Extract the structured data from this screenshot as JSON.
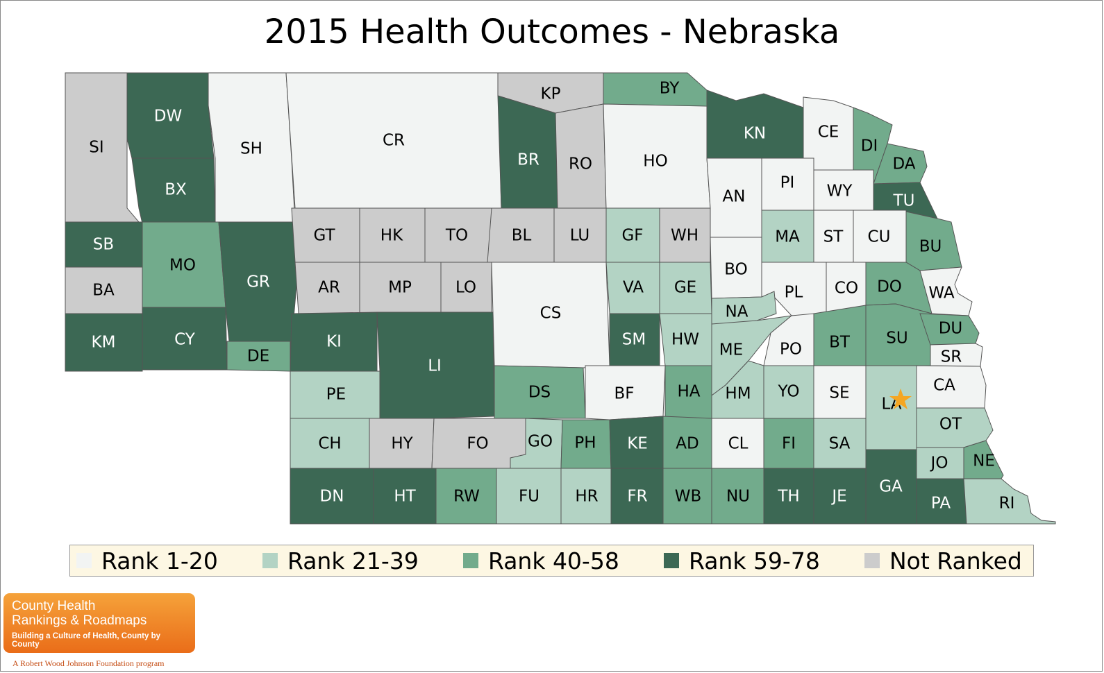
{
  "title": "2015 Health Outcomes - Nebraska",
  "colors": {
    "r1": "#f2f4f3",
    "r2": "#b3d3c4",
    "r3": "#72ab8c",
    "r4": "#3c6854",
    "nr": "#cccccc",
    "marker": "#f5a623"
  },
  "legend": [
    {
      "label": "Rank 1-20",
      "color": "#f2f4f3"
    },
    {
      "label": "Rank 21-39",
      "color": "#b3d3c4"
    },
    {
      "label": "Rank 40-58",
      "color": "#72ab8c"
    },
    {
      "label": "Rank 59-78",
      "color": "#3c6854"
    },
    {
      "label": "Not Ranked",
      "color": "#cccccc"
    }
  ],
  "counties": [
    {
      "code": "SI",
      "cat": "nr"
    },
    {
      "code": "DW",
      "cat": "r4"
    },
    {
      "code": "SH",
      "cat": "r1"
    },
    {
      "code": "CR",
      "cat": "r1"
    },
    {
      "code": "KP",
      "cat": "nr"
    },
    {
      "code": "BY",
      "cat": "r3"
    },
    {
      "code": "BR",
      "cat": "r4"
    },
    {
      "code": "RO",
      "cat": "nr"
    },
    {
      "code": "HO",
      "cat": "r1"
    },
    {
      "code": "KN",
      "cat": "r4"
    },
    {
      "code": "CE",
      "cat": "r1"
    },
    {
      "code": "DI",
      "cat": "r3"
    },
    {
      "code": "DA",
      "cat": "r3"
    },
    {
      "code": "BX",
      "cat": "r4"
    },
    {
      "code": "AN",
      "cat": "r1"
    },
    {
      "code": "PI",
      "cat": "r1"
    },
    {
      "code": "WY",
      "cat": "r1"
    },
    {
      "code": "TU",
      "cat": "r4"
    },
    {
      "code": "SB",
      "cat": "r4"
    },
    {
      "code": "MO",
      "cat": "r3"
    },
    {
      "code": "GR",
      "cat": "r4"
    },
    {
      "code": "GT",
      "cat": "nr"
    },
    {
      "code": "HK",
      "cat": "nr"
    },
    {
      "code": "TO",
      "cat": "nr"
    },
    {
      "code": "BL",
      "cat": "nr"
    },
    {
      "code": "LU",
      "cat": "nr"
    },
    {
      "code": "GF",
      "cat": "r2"
    },
    {
      "code": "WH",
      "cat": "nr"
    },
    {
      "code": "MA",
      "cat": "r2"
    },
    {
      "code": "ST",
      "cat": "r1"
    },
    {
      "code": "CU",
      "cat": "r1"
    },
    {
      "code": "BU",
      "cat": "r3"
    },
    {
      "code": "BA",
      "cat": "nr"
    },
    {
      "code": "AR",
      "cat": "nr"
    },
    {
      "code": "MP",
      "cat": "nr"
    },
    {
      "code": "LO",
      "cat": "nr"
    },
    {
      "code": "CS",
      "cat": "r1"
    },
    {
      "code": "VA",
      "cat": "r2"
    },
    {
      "code": "GE",
      "cat": "r2"
    },
    {
      "code": "BO",
      "cat": "r1"
    },
    {
      "code": "PL",
      "cat": "r1"
    },
    {
      "code": "CO",
      "cat": "r1"
    },
    {
      "code": "DO",
      "cat": "r3"
    },
    {
      "code": "WA",
      "cat": "r1"
    },
    {
      "code": "NA",
      "cat": "r2"
    },
    {
      "code": "KM",
      "cat": "r4"
    },
    {
      "code": "CY",
      "cat": "r4"
    },
    {
      "code": "KI",
      "cat": "r4"
    },
    {
      "code": "LI",
      "cat": "r4"
    },
    {
      "code": "SM",
      "cat": "r4"
    },
    {
      "code": "HW",
      "cat": "r2"
    },
    {
      "code": "ME",
      "cat": "r2"
    },
    {
      "code": "PO",
      "cat": "r1"
    },
    {
      "code": "BT",
      "cat": "r3"
    },
    {
      "code": "SU",
      "cat": "r3"
    },
    {
      "code": "DU",
      "cat": "r3"
    },
    {
      "code": "DE",
      "cat": "r3"
    },
    {
      "code": "SR",
      "cat": "r1"
    },
    {
      "code": "PE",
      "cat": "r2"
    },
    {
      "code": "DS",
      "cat": "r3"
    },
    {
      "code": "BF",
      "cat": "r1"
    },
    {
      "code": "HA",
      "cat": "r3"
    },
    {
      "code": "HM",
      "cat": "r2"
    },
    {
      "code": "YO",
      "cat": "r2"
    },
    {
      "code": "SE",
      "cat": "r1"
    },
    {
      "code": "LA",
      "cat": "r2"
    },
    {
      "code": "CA",
      "cat": "r1"
    },
    {
      "code": "OT",
      "cat": "r2"
    },
    {
      "code": "CH",
      "cat": "r2"
    },
    {
      "code": "HY",
      "cat": "nr"
    },
    {
      "code": "FO",
      "cat": "nr"
    },
    {
      "code": "GO",
      "cat": "r2"
    },
    {
      "code": "PH",
      "cat": "r3"
    },
    {
      "code": "KE",
      "cat": "r4"
    },
    {
      "code": "AD",
      "cat": "r3"
    },
    {
      "code": "CL",
      "cat": "r1"
    },
    {
      "code": "FI",
      "cat": "r3"
    },
    {
      "code": "SA",
      "cat": "r2"
    },
    {
      "code": "JO",
      "cat": "r2"
    },
    {
      "code": "NE",
      "cat": "r3"
    },
    {
      "code": "GA",
      "cat": "r4"
    },
    {
      "code": "DN",
      "cat": "r4"
    },
    {
      "code": "HT",
      "cat": "r4"
    },
    {
      "code": "RW",
      "cat": "r3"
    },
    {
      "code": "FU",
      "cat": "r2"
    },
    {
      "code": "HR",
      "cat": "r2"
    },
    {
      "code": "FR",
      "cat": "r4"
    },
    {
      "code": "WB",
      "cat": "r3"
    },
    {
      "code": "NU",
      "cat": "r3"
    },
    {
      "code": "TH",
      "cat": "r4"
    },
    {
      "code": "JE",
      "cat": "r4"
    },
    {
      "code": "PA",
      "cat": "r4"
    },
    {
      "code": "RI",
      "cat": "r2"
    }
  ],
  "capital_marker": "star-icon",
  "logo": {
    "line1": "County Health",
    "line2": "Rankings & Roadmaps",
    "line3": "Building a Culture of Health, County by County"
  },
  "tagline": "A Robert Wood Johnson Foundation program"
}
